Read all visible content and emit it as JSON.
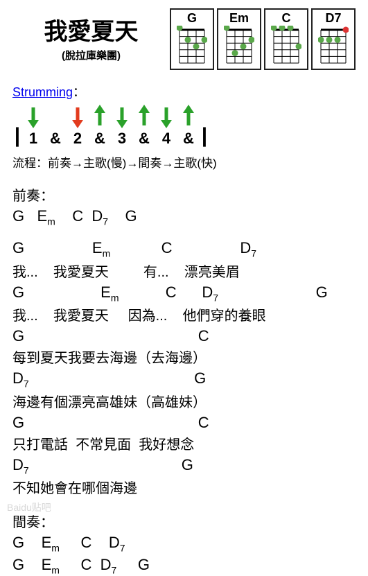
{
  "title": "我愛夏天",
  "subtitle": "(脫拉庫樂團)",
  "chords": [
    {
      "name": "G",
      "dots": [
        {
          "string": 0,
          "fret": 0,
          "color": "#5aa84a"
        },
        {
          "string": 1,
          "fret": 2,
          "color": "#5aa84a"
        },
        {
          "string": 2,
          "fret": 3,
          "color": "#5aa84a"
        },
        {
          "string": 3,
          "fret": 2,
          "color": "#5aa84a"
        }
      ]
    },
    {
      "name": "Em",
      "dots": [
        {
          "string": 0,
          "fret": 0,
          "color": "#5aa84a"
        },
        {
          "string": 1,
          "fret": 4,
          "color": "#5aa84a"
        },
        {
          "string": 2,
          "fret": 3,
          "color": "#5aa84a"
        },
        {
          "string": 3,
          "fret": 2,
          "color": "#5aa84a"
        }
      ]
    },
    {
      "name": "C",
      "dots": [
        {
          "string": 0,
          "fret": 0,
          "color": "#5aa84a"
        },
        {
          "string": 1,
          "fret": 0,
          "color": "#5aa84a"
        },
        {
          "string": 2,
          "fret": 0,
          "color": "#5aa84a"
        },
        {
          "string": 3,
          "fret": 3,
          "color": "#5aa84a"
        }
      ]
    },
    {
      "name": "D7",
      "dots": [
        {
          "string": 0,
          "fret": 2,
          "color": "#5aa84a"
        },
        {
          "string": 1,
          "fret": 2,
          "color": "#5aa84a"
        },
        {
          "string": 2,
          "fret": 2,
          "color": "#5aa84a"
        },
        {
          "string": 3,
          "fret": 0.5,
          "color": "#d33"
        }
      ]
    }
  ],
  "fretboard": {
    "strings": 4,
    "frets": 5,
    "width": 44,
    "height": 58
  },
  "strumming": {
    "label": "Strumming",
    "sep": "：",
    "arrows": [
      {
        "dir": "down",
        "color": "#2aa12a"
      },
      null,
      {
        "dir": "down",
        "color": "#e23b1e"
      },
      {
        "dir": "up",
        "color": "#2aa12a"
      },
      {
        "dir": "down",
        "color": "#2aa12a"
      },
      {
        "dir": "up",
        "color": "#2aa12a"
      },
      {
        "dir": "down",
        "color": "#2aa12a"
      },
      {
        "dir": "up",
        "color": "#2aa12a"
      }
    ],
    "beats": [
      "1",
      "&",
      "2",
      "&",
      "3",
      "&",
      "4",
      "&"
    ]
  },
  "flow": "流程：前奏→主歌(慢)→間奏→主歌(快)",
  "intro_label": "前奏：",
  "intro_chords": {
    "parts": [
      "G",
      "   ",
      "E",
      "m",
      "    ",
      "C",
      "  ",
      "D",
      "7",
      "    ",
      "G"
    ]
  },
  "verse": [
    {
      "type": "chords",
      "parts": [
        "G",
        "                ",
        "E",
        "m",
        "            ",
        "C",
        "                ",
        "D",
        "7"
      ]
    },
    {
      "type": "lyric",
      "text": "我...    我愛夏天         有...    漂亮美眉"
    },
    {
      "type": "chords",
      "parts": [
        "G",
        "                  ",
        "E",
        "m",
        "           ",
        "C",
        "      ",
        "D",
        "7",
        "                       ",
        "G"
      ]
    },
    {
      "type": "lyric",
      "text": "我...    我愛夏天     因為...    他們穿的養眼"
    },
    {
      "type": "chords",
      "parts": [
        "G",
        "                                         ",
        "C"
      ]
    },
    {
      "type": "lyric",
      "text": "每到夏天我要去海邊（去海邊）"
    },
    {
      "type": "chords",
      "parts": [
        "D",
        "7",
        "                                       ",
        "G"
      ]
    },
    {
      "type": "lyric",
      "text": "海邊有個漂亮高雄妹（高雄妹）"
    },
    {
      "type": "chords",
      "parts": [
        "G",
        "                                         ",
        "C"
      ]
    },
    {
      "type": "lyric",
      "text": "只打電話  不常見面  我好想念"
    },
    {
      "type": "chords",
      "parts": [
        "D",
        "7",
        "                                    ",
        "G"
      ]
    },
    {
      "type": "lyric",
      "text": "不知她會在哪個海邊"
    }
  ],
  "inter_label": "間奏：",
  "inter_line1": {
    "parts": [
      "G",
      "    ",
      "E",
      "m",
      "     ",
      "C",
      "    ",
      "D",
      "7"
    ]
  },
  "inter_line2": {
    "parts": [
      "G",
      "    ",
      "E",
      "m",
      "     ",
      "C",
      "  ",
      "D",
      "7",
      "     ",
      "G"
    ]
  },
  "watermark": "Baidu贴吧"
}
